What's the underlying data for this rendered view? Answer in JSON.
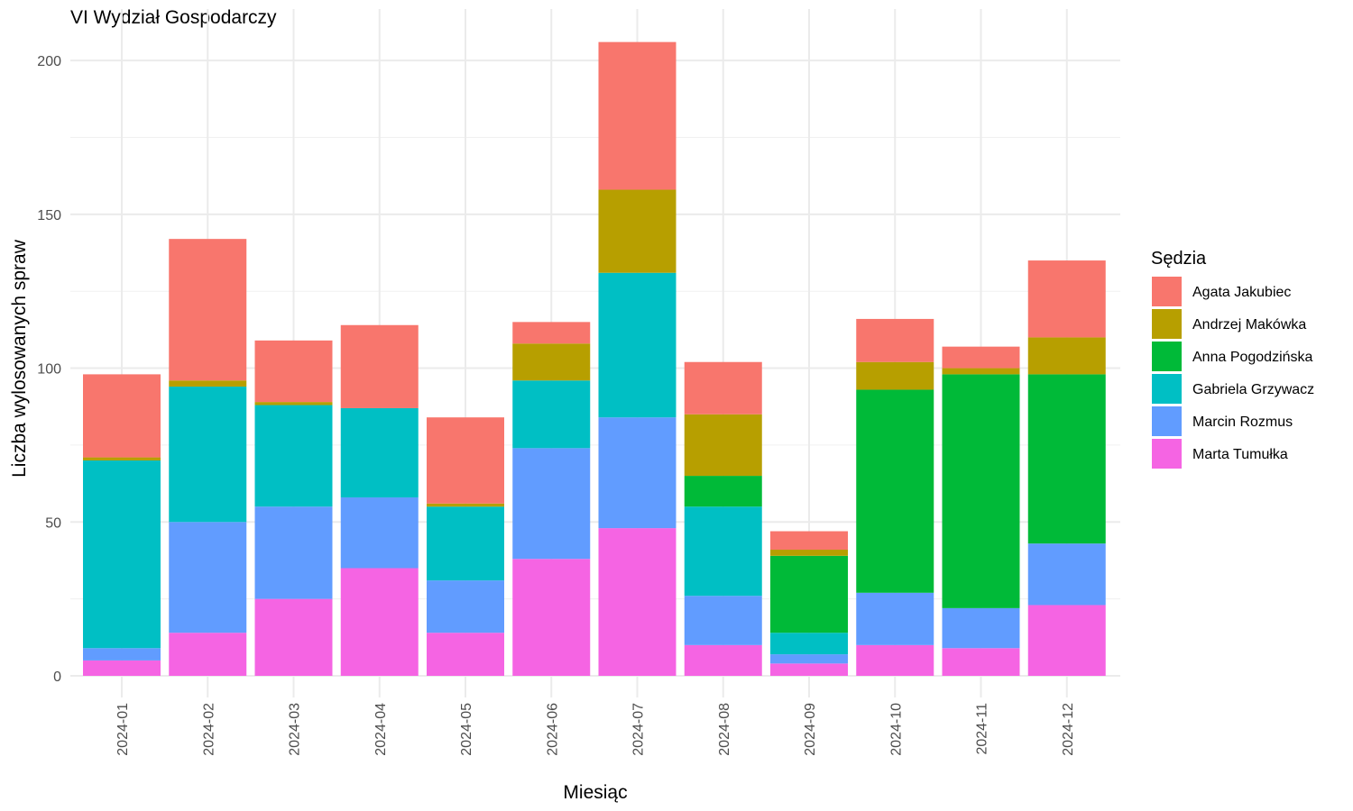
{
  "chart_data": {
    "type": "bar",
    "stacked": true,
    "title": "VI Wydział Gospodarczy",
    "xlabel": "Miesiąc",
    "ylabel": "Liczba wylosowanych spraw",
    "ylim": [
      0,
      210
    ],
    "yticks": [
      0,
      50,
      100,
      150,
      200
    ],
    "grid": true,
    "legend": {
      "title": "Sędzia",
      "position": "right"
    },
    "categories": [
      "2024-01",
      "2024-02",
      "2024-03",
      "2024-04",
      "2024-05",
      "2024-06",
      "2024-07",
      "2024-08",
      "2024-09",
      "2024-10",
      "2024-11",
      "2024-12"
    ],
    "series": [
      {
        "name": "Marta Tumułka",
        "color": "#F564E3",
        "values": [
          5,
          14,
          25,
          35,
          14,
          38,
          48,
          10,
          4,
          10,
          9,
          23
        ]
      },
      {
        "name": "Marcin Rozmus",
        "color": "#619CFF",
        "values": [
          4,
          36,
          30,
          23,
          17,
          36,
          36,
          16,
          3,
          17,
          13,
          20
        ]
      },
      {
        "name": "Gabriela Grzywacz",
        "color": "#00BFC4",
        "values": [
          61,
          44,
          33,
          29,
          24,
          22,
          47,
          29,
          7,
          0,
          0,
          0
        ]
      },
      {
        "name": "Anna Pogodzińska",
        "color": "#00BA38",
        "values": [
          0,
          0,
          0,
          0,
          0,
          0,
          0,
          10,
          25,
          66,
          76,
          55
        ]
      },
      {
        "name": "Andrzej Makówka",
        "color": "#B79F00",
        "values": [
          1,
          2,
          1,
          0,
          1,
          12,
          27,
          20,
          2,
          9,
          2,
          12
        ]
      },
      {
        "name": "Agata Jakubiec",
        "color": "#F8766D",
        "values": [
          27,
          46,
          20,
          27,
          28,
          7,
          48,
          17,
          6,
          14,
          7,
          25
        ]
      }
    ],
    "legend_order": [
      "Agata Jakubiec",
      "Andrzej Makówka",
      "Anna Pogodzińska",
      "Gabriela Grzywacz",
      "Marcin Rozmus",
      "Marta Tumułka"
    ]
  }
}
